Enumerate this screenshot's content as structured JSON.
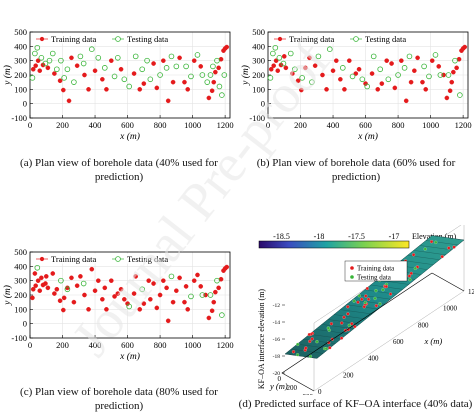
{
  "watermark": {
    "text": "Journal Pre-proof"
  },
  "captions": {
    "a": {
      "line1": "(a) Plan view of borehole data (40% used for",
      "line2": "prediction)"
    },
    "b": {
      "line1": "(b) Plan view of borehole data (60% used for",
      "line2": "prediction)"
    },
    "c": {
      "line1": "(c) Plan view of borehole data (80% used for",
      "line2": "prediction)"
    },
    "d": {
      "line1": "(d) Predicted surface of KF–OA interface (40% data)"
    }
  },
  "chart_data": [
    {
      "id": "a",
      "type": "scatter",
      "xlabel": "x (m)",
      "ylabel": "y (m)",
      "xlim": [
        0,
        1230
      ],
      "ylim": [
        -100,
        500
      ],
      "xticks": [
        0,
        200,
        400,
        600,
        800,
        1000,
        1200
      ],
      "yticks": [
        -100,
        0,
        100,
        200,
        300,
        400,
        500
      ],
      "grid": true,
      "legend_position": "top-center",
      "series": [
        {
          "name": "Training data",
          "color": "#e41a1c",
          "marker": "filled-circle",
          "points": [
            [
              20,
              240
            ],
            [
              35,
              265
            ],
            [
              50,
              300
            ],
            [
              60,
              230
            ],
            [
              80,
              270
            ],
            [
              110,
              250
            ],
            [
              150,
              210
            ],
            [
              185,
              160
            ],
            [
              205,
              95
            ],
            [
              240,
              20
            ],
            [
              255,
              320
            ],
            [
              290,
              265
            ],
            [
              335,
              200
            ],
            [
              360,
              100
            ],
            [
              400,
              230
            ],
            [
              445,
              170
            ],
            [
              470,
              100
            ],
            [
              500,
              300
            ],
            [
              560,
              240
            ],
            [
              640,
              210
            ],
            [
              675,
              100
            ],
            [
              700,
              140
            ],
            [
              760,
              280
            ],
            [
              780,
              110
            ],
            [
              820,
              300
            ],
            [
              850,
              20
            ],
            [
              880,
              150
            ],
            [
              920,
              320
            ],
            [
              950,
              150
            ],
            [
              970,
              100
            ],
            [
              1010,
              300
            ],
            [
              1050,
              260
            ],
            [
              1100,
              40
            ],
            [
              1120,
              90
            ],
            [
              1130,
              150
            ],
            [
              1140,
              220
            ],
            [
              1160,
              250
            ],
            [
              1175,
              310
            ],
            [
              1190,
              370
            ],
            [
              1200,
              385
            ],
            [
              1210,
              395
            ]
          ]
        },
        {
          "name": "Testing data",
          "color": "#39b539",
          "marker": "open-circle",
          "points": [
            [
              15,
              180
            ],
            [
              30,
              350
            ],
            [
              45,
              390
            ],
            [
              70,
              320
            ],
            [
              95,
              280
            ],
            [
              120,
              300
            ],
            [
              140,
              350
            ],
            [
              165,
              240
            ],
            [
              190,
              300
            ],
            [
              210,
              180
            ],
            [
              230,
              240
            ],
            [
              270,
              150
            ],
            [
              310,
              330
            ],
            [
              330,
              280
            ],
            [
              380,
              380
            ],
            [
              420,
              320
            ],
            [
              460,
              250
            ],
            [
              520,
              190
            ],
            [
              540,
              320
            ],
            [
              580,
              170
            ],
            [
              610,
              120
            ],
            [
              650,
              330
            ],
            [
              690,
              240
            ],
            [
              720,
              300
            ],
            [
              740,
              170
            ],
            [
              800,
              200
            ],
            [
              840,
              250
            ],
            [
              870,
              330
            ],
            [
              900,
              260
            ],
            [
              960,
              260
            ],
            [
              990,
              190
            ],
            [
              1030,
              340
            ],
            [
              1060,
              200
            ],
            [
              1090,
              150
            ],
            [
              1110,
              200
            ],
            [
              1125,
              260
            ],
            [
              1150,
              300
            ],
            [
              1165,
              120
            ],
            [
              1180,
              60
            ],
            [
              1195,
              200
            ]
          ]
        }
      ]
    },
    {
      "id": "b",
      "type": "scatter",
      "xlabel": "x (m)",
      "ylabel": "y (m)",
      "xlim": [
        0,
        1230
      ],
      "ylim": [
        -100,
        500
      ],
      "xticks": [
        0,
        200,
        400,
        600,
        800,
        1000,
        1200
      ],
      "yticks": [
        -100,
        0,
        100,
        200,
        300,
        400,
        500
      ],
      "grid": true,
      "legend_position": "top-center",
      "series": [
        {
          "name": "Training data",
          "color": "#e41a1c",
          "marker": "filled-circle",
          "points": [
            [
              20,
              240
            ],
            [
              35,
              265
            ],
            [
              50,
              300
            ],
            [
              60,
              230
            ],
            [
              80,
              270
            ],
            [
              100,
              330
            ],
            [
              110,
              250
            ],
            [
              150,
              210
            ],
            [
              185,
              160
            ],
            [
              205,
              95
            ],
            [
              230,
              250
            ],
            [
              255,
              320
            ],
            [
              290,
              265
            ],
            [
              335,
              200
            ],
            [
              360,
              100
            ],
            [
              400,
              230
            ],
            [
              420,
              300
            ],
            [
              445,
              170
            ],
            [
              470,
              100
            ],
            [
              500,
              300
            ],
            [
              540,
              210
            ],
            [
              560,
              240
            ],
            [
              600,
              140
            ],
            [
              640,
              210
            ],
            [
              675,
              100
            ],
            [
              700,
              140
            ],
            [
              730,
              300
            ],
            [
              760,
              280
            ],
            [
              780,
              110
            ],
            [
              820,
              300
            ],
            [
              850,
              20
            ],
            [
              880,
              150
            ],
            [
              900,
              230
            ],
            [
              920,
              320
            ],
            [
              950,
              150
            ],
            [
              970,
              100
            ],
            [
              1010,
              300
            ],
            [
              1050,
              260
            ],
            [
              1080,
              200
            ],
            [
              1100,
              40
            ],
            [
              1120,
              90
            ],
            [
              1130,
              150
            ],
            [
              1140,
              220
            ],
            [
              1160,
              250
            ],
            [
              1175,
              310
            ],
            [
              1190,
              370
            ],
            [
              1200,
              385
            ],
            [
              1210,
              395
            ]
          ]
        },
        {
          "name": "Testing data",
          "color": "#39b539",
          "marker": "open-circle",
          "points": [
            [
              15,
              180
            ],
            [
              30,
              350
            ],
            [
              45,
              390
            ],
            [
              70,
              320
            ],
            [
              95,
              280
            ],
            [
              140,
              350
            ],
            [
              165,
              240
            ],
            [
              210,
              180
            ],
            [
              270,
              150
            ],
            [
              310,
              330
            ],
            [
              380,
              380
            ],
            [
              460,
              250
            ],
            [
              520,
              190
            ],
            [
              580,
              170
            ],
            [
              610,
              120
            ],
            [
              650,
              330
            ],
            [
              690,
              240
            ],
            [
              740,
              170
            ],
            [
              800,
              200
            ],
            [
              840,
              250
            ],
            [
              870,
              330
            ],
            [
              960,
              260
            ],
            [
              990,
              190
            ],
            [
              1030,
              340
            ],
            [
              1060,
              200
            ],
            [
              1110,
              200
            ],
            [
              1150,
              300
            ],
            [
              1180,
              60
            ]
          ]
        }
      ]
    },
    {
      "id": "c",
      "type": "scatter",
      "xlabel": "x (m)",
      "ylabel": "y (m)",
      "xlim": [
        0,
        1230
      ],
      "ylim": [
        -100,
        500
      ],
      "xticks": [
        0,
        200,
        400,
        600,
        800,
        1000,
        1200
      ],
      "yticks": [
        -100,
        0,
        100,
        200,
        300,
        400,
        500
      ],
      "grid": true,
      "legend_position": "top-center",
      "series": [
        {
          "name": "Training data",
          "color": "#e41a1c",
          "marker": "filled-circle",
          "points": [
            [
              15,
              180
            ],
            [
              20,
              240
            ],
            [
              30,
              350
            ],
            [
              35,
              265
            ],
            [
              50,
              300
            ],
            [
              60,
              230
            ],
            [
              70,
              320
            ],
            [
              80,
              270
            ],
            [
              95,
              280
            ],
            [
              100,
              330
            ],
            [
              110,
              250
            ],
            [
              140,
              350
            ],
            [
              150,
              210
            ],
            [
              165,
              240
            ],
            [
              185,
              160
            ],
            [
              205,
              95
            ],
            [
              210,
              180
            ],
            [
              230,
              250
            ],
            [
              255,
              320
            ],
            [
              270,
              150
            ],
            [
              290,
              265
            ],
            [
              310,
              330
            ],
            [
              335,
              200
            ],
            [
              360,
              100
            ],
            [
              380,
              380
            ],
            [
              400,
              230
            ],
            [
              420,
              300
            ],
            [
              445,
              170
            ],
            [
              460,
              250
            ],
            [
              470,
              100
            ],
            [
              500,
              300
            ],
            [
              520,
              190
            ],
            [
              540,
              210
            ],
            [
              560,
              240
            ],
            [
              580,
              170
            ],
            [
              600,
              140
            ],
            [
              640,
              210
            ],
            [
              650,
              330
            ],
            [
              675,
              100
            ],
            [
              700,
              140
            ],
            [
              730,
              300
            ],
            [
              740,
              170
            ],
            [
              760,
              280
            ],
            [
              780,
              110
            ],
            [
              800,
              200
            ],
            [
              820,
              300
            ],
            [
              840,
              250
            ],
            [
              850,
              20
            ],
            [
              880,
              150
            ],
            [
              900,
              230
            ],
            [
              920,
              320
            ],
            [
              950,
              150
            ],
            [
              960,
              260
            ],
            [
              970,
              100
            ],
            [
              1010,
              300
            ],
            [
              1030,
              340
            ],
            [
              1050,
              260
            ],
            [
              1080,
              200
            ],
            [
              1100,
              40
            ],
            [
              1120,
              90
            ],
            [
              1130,
              150
            ],
            [
              1140,
              220
            ],
            [
              1160,
              250
            ],
            [
              1175,
              310
            ],
            [
              1190,
              370
            ],
            [
              1200,
              385
            ],
            [
              1210,
              395
            ]
          ]
        },
        {
          "name": "Testing data",
          "color": "#39b539",
          "marker": "open-circle",
          "points": [
            [
              45,
              390
            ],
            [
              190,
              300
            ],
            [
              230,
              240
            ],
            [
              330,
              280
            ],
            [
              610,
              120
            ],
            [
              690,
              240
            ],
            [
              870,
              330
            ],
            [
              990,
              190
            ],
            [
              1060,
              200
            ],
            [
              1110,
              200
            ],
            [
              1150,
              300
            ],
            [
              1180,
              60
            ]
          ]
        }
      ]
    },
    {
      "id": "d",
      "type": "surface",
      "zlabel": "KF–OA interface elevation (m)",
      "xlabel": "x (m)",
      "ylabel": "y (m)",
      "colorbar_label": "Elevation (m)",
      "colorbar_ticks": [
        -18.5,
        -18,
        -17.5,
        -17
      ],
      "colorbar_range": [
        -18.8,
        -16.8
      ],
      "x_ticks": [
        0,
        200,
        400,
        600,
        800,
        1000,
        1200
      ],
      "y_ticks": [
        0,
        200,
        300
      ],
      "z_ticks": [
        "-20",
        "-18",
        "-16",
        "-14",
        "-12"
      ],
      "legend_position": "top-left",
      "series": [
        {
          "name": "Training data",
          "color": "#e41a1c"
        },
        {
          "name": "Testing data",
          "color": "#39b539"
        }
      ]
    }
  ]
}
